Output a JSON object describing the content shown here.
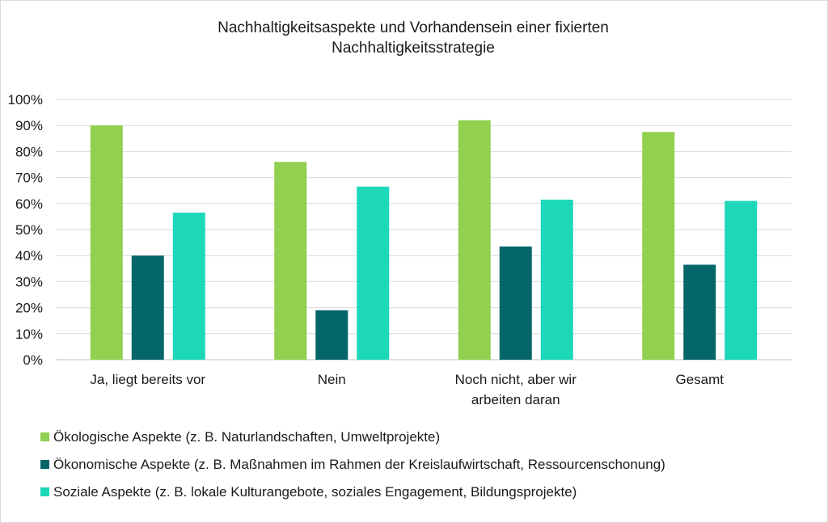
{
  "chart_data": {
    "type": "bar",
    "title_lines": [
      "Nachhaltigkeitsaspekte und Vorhandensein einer fixierten",
      "Nachhaltigkeitsstrategie"
    ],
    "categories": [
      [
        "Ja, liegt bereits vor"
      ],
      [
        "Nein"
      ],
      [
        "Noch nicht, aber wir",
        "arbeiten daran"
      ],
      [
        "Gesamt"
      ]
    ],
    "series": [
      {
        "name": "Ökologische Aspekte (z. B. Naturlandschaften, Umweltprojekte)",
        "color": "#92d050",
        "values": [
          90,
          76,
          92,
          87.5
        ]
      },
      {
        "name": "Ökonomische Aspekte (z. B. Maßnahmen im Rahmen der Kreislaufwirtschaft, Ressourcenschonung)",
        "color": "#05666a",
        "values": [
          40,
          19,
          43.5,
          36.5
        ]
      },
      {
        "name": "Soziale Aspekte (z. B. lokale Kulturangebote, soziales Engagement, Bildungsprojekte)",
        "color": "#1cd8b8",
        "values": [
          56.5,
          66.5,
          61.5,
          61
        ]
      }
    ],
    "ylim": [
      0,
      100
    ],
    "yticks": [
      "0%",
      "10%",
      "20%",
      "30%",
      "40%",
      "50%",
      "60%",
      "70%",
      "80%",
      "90%",
      "100%"
    ],
    "grid": true,
    "legend_position": "bottom"
  }
}
